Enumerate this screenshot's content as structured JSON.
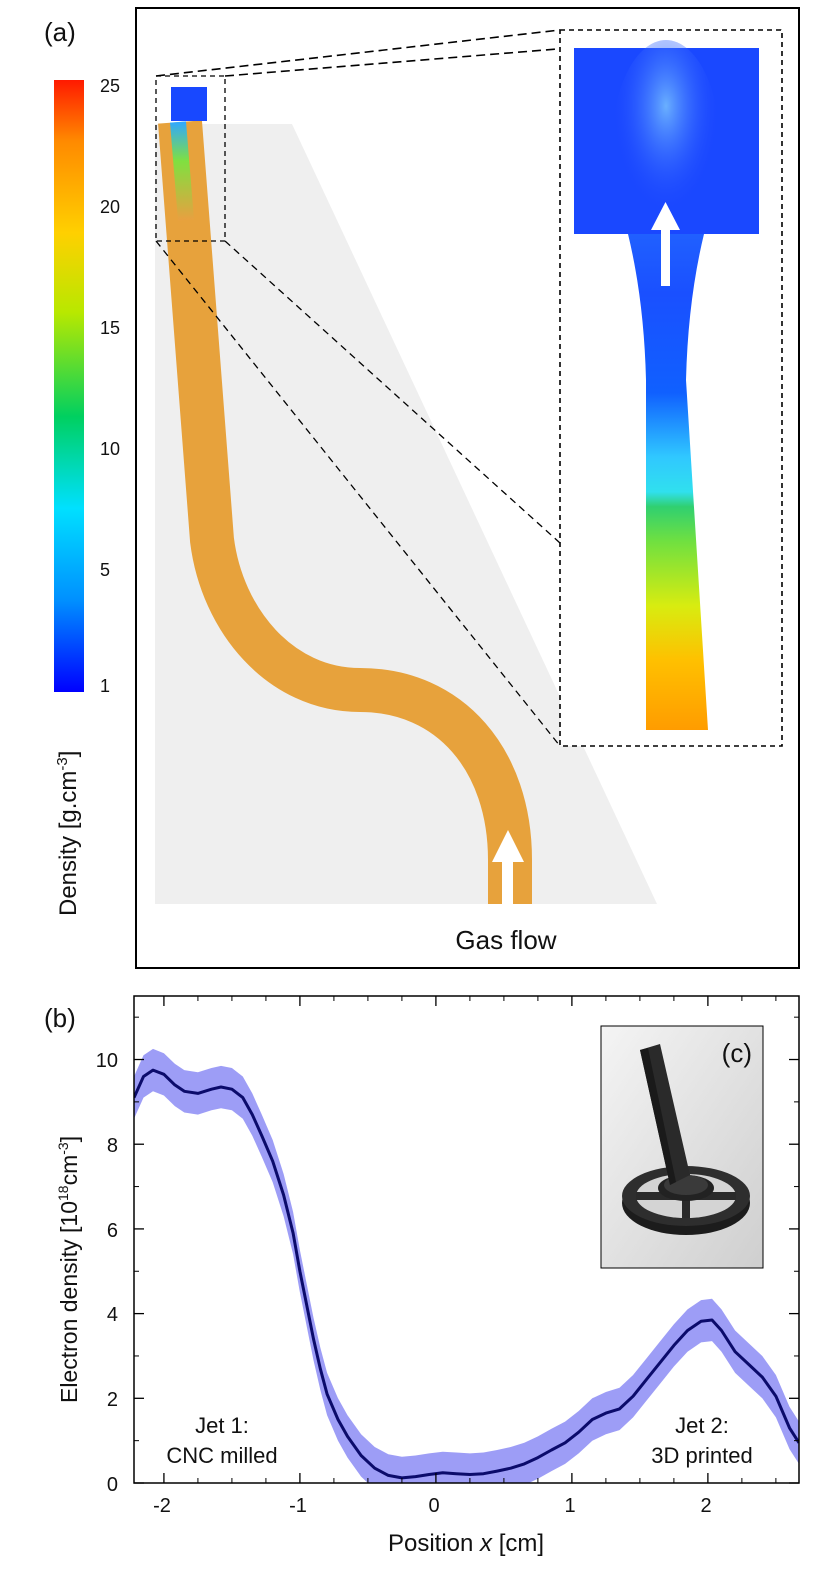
{
  "panel_a": {
    "label": "(a)",
    "colorbar": {
      "title": "Density [g.cm",
      "title_sup": "-3",
      "title_end": "]",
      "ticks": [
        "25",
        "20",
        "15",
        "10",
        "5",
        "1"
      ],
      "tick_values": [
        25,
        20,
        15,
        10,
        5,
        1
      ],
      "range": [
        1,
        25
      ],
      "colors": [
        "#1a1aff",
        "#00c8ff",
        "#00d060",
        "#e8ee00",
        "#ffb000",
        "#ff2000"
      ]
    },
    "gas_flow_label": "Gas flow",
    "jet_color": "#e7a23c",
    "gas_region_color": "#efefef"
  },
  "panel_b": {
    "label": "(b)",
    "inset_label": "(c)",
    "annotations": {
      "jet1_line1": "Jet 1:",
      "jet1_line2": "CNC milled",
      "jet2_line1": "Jet 2:",
      "jet2_line2": "3D printed"
    }
  },
  "chart_data": {
    "type": "line",
    "title": "",
    "xlabel": "Position x [cm]",
    "xlabel_prefix": "Position ",
    "xlabel_var": "x",
    "xlabel_unit": " [cm]",
    "ylabel": "Electron density [10^18 cm^-3]",
    "ylabel_main": "Electron density [10",
    "ylabel_sup1": "18",
    "ylabel_mid": "cm",
    "ylabel_sup2": "-3",
    "ylabel_end": "]",
    "xlim": [
      -2.22,
      2.67
    ],
    "ylim": [
      0,
      11.5
    ],
    "xticks": [
      -2,
      -1,
      0,
      1,
      2
    ],
    "xtick_labels": [
      "-2",
      "-1",
      "0",
      "1",
      "2"
    ],
    "yticks": [
      0,
      2,
      4,
      6,
      8,
      10
    ],
    "ytick_labels": [
      "0",
      "2",
      "4",
      "6",
      "8",
      "10"
    ],
    "line_color": "#0b0b6b",
    "band_color": "#8c8cf5",
    "band_halfwidth": 0.5,
    "series": [
      {
        "x": [
          -2.22,
          -2.15,
          -2.08,
          -2.0,
          -1.92,
          -1.85,
          -1.75,
          -1.65,
          -1.58,
          -1.5,
          -1.42,
          -1.35,
          -1.28,
          -1.2,
          -1.12,
          -1.05,
          -1.0,
          -0.95,
          -0.9,
          -0.85,
          -0.8,
          -0.72,
          -0.65,
          -0.55,
          -0.45,
          -0.35,
          -0.25,
          -0.15,
          -0.05,
          0.05,
          0.15,
          0.25,
          0.35,
          0.45,
          0.55,
          0.65,
          0.75,
          0.85,
          0.95,
          1.05,
          1.15,
          1.25,
          1.35,
          1.45,
          1.55,
          1.65,
          1.75,
          1.85,
          1.95,
          2.03,
          2.1,
          2.2,
          2.3,
          2.4,
          2.5,
          2.6,
          2.67
        ],
        "y": [
          9.1,
          9.6,
          9.75,
          9.65,
          9.4,
          9.25,
          9.2,
          9.3,
          9.35,
          9.3,
          9.1,
          8.7,
          8.2,
          7.6,
          6.8,
          5.9,
          5.0,
          4.2,
          3.4,
          2.7,
          2.1,
          1.5,
          1.1,
          0.65,
          0.35,
          0.18,
          0.12,
          0.15,
          0.2,
          0.24,
          0.22,
          0.2,
          0.22,
          0.28,
          0.35,
          0.45,
          0.6,
          0.78,
          0.95,
          1.2,
          1.5,
          1.65,
          1.75,
          2.05,
          2.45,
          2.85,
          3.25,
          3.6,
          3.82,
          3.85,
          3.6,
          3.1,
          2.8,
          2.5,
          2.05,
          1.3,
          0.95
        ]
      }
    ],
    "grid": false,
    "legend": "none"
  }
}
